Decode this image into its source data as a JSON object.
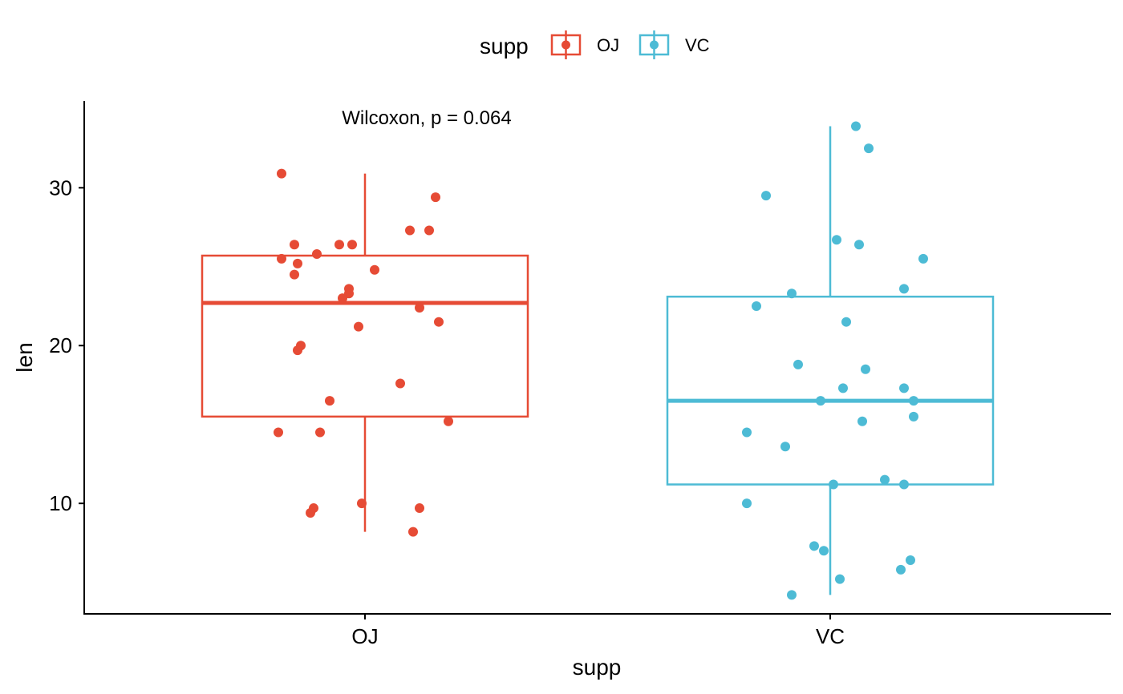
{
  "chart_data": {
    "type": "boxplot",
    "xlabel": "supp",
    "ylabel": "len",
    "categories": [
      "OJ",
      "VC"
    ],
    "ylim": [
      3,
      35.5
    ],
    "yticks": [
      10,
      20,
      30
    ],
    "grid": false,
    "legend": {
      "title": "supp",
      "placement": "top",
      "entries": [
        "OJ",
        "VC"
      ]
    },
    "annotation": "Wilcoxon, p = 0.064",
    "series": [
      {
        "name": "OJ",
        "color": "#E64B35",
        "box": {
          "min": 8.2,
          "q1": 15.5,
          "median": 22.7,
          "q3": 25.7,
          "max": 30.9
        },
        "points": [
          {
            "x": -0.26,
            "y": 30.9
          },
          {
            "x": 0.22,
            "y": 29.4
          },
          {
            "x": 0.14,
            "y": 27.3
          },
          {
            "x": 0.2,
            "y": 27.3
          },
          {
            "x": -0.22,
            "y": 26.4
          },
          {
            "x": -0.08,
            "y": 26.4
          },
          {
            "x": -0.04,
            "y": 26.4
          },
          {
            "x": -0.15,
            "y": 25.8
          },
          {
            "x": -0.26,
            "y": 25.5
          },
          {
            "x": -0.21,
            "y": 25.2
          },
          {
            "x": 0.03,
            "y": 24.8
          },
          {
            "x": -0.22,
            "y": 24.5
          },
          {
            "x": -0.05,
            "y": 23.6
          },
          {
            "x": -0.05,
            "y": 23.3
          },
          {
            "x": -0.07,
            "y": 23.0
          },
          {
            "x": 0.17,
            "y": 22.4
          },
          {
            "x": 0.23,
            "y": 21.5
          },
          {
            "x": -0.02,
            "y": 21.2
          },
          {
            "x": -0.2,
            "y": 20.0
          },
          {
            "x": -0.21,
            "y": 19.7
          },
          {
            "x": 0.11,
            "y": 17.6
          },
          {
            "x": -0.11,
            "y": 16.5
          },
          {
            "x": 0.26,
            "y": 15.2
          },
          {
            "x": -0.27,
            "y": 14.5
          },
          {
            "x": -0.14,
            "y": 14.5
          },
          {
            "x": -0.01,
            "y": 10.0
          },
          {
            "x": -0.16,
            "y": 9.7
          },
          {
            "x": 0.17,
            "y": 9.7
          },
          {
            "x": -0.17,
            "y": 9.4
          },
          {
            "x": 0.15,
            "y": 8.2
          }
        ]
      },
      {
        "name": "VC",
        "color": "#4DBBD5",
        "box": {
          "min": 4.2,
          "q1": 11.2,
          "median": 16.5,
          "q3": 23.1,
          "max": 33.9
        },
        "points": [
          {
            "x": 0.08,
            "y": 33.9
          },
          {
            "x": 0.12,
            "y": 32.5
          },
          {
            "x": -0.2,
            "y": 29.5
          },
          {
            "x": 0.02,
            "y": 26.7
          },
          {
            "x": 0.09,
            "y": 26.4
          },
          {
            "x": 0.29,
            "y": 25.5
          },
          {
            "x": -0.12,
            "y": 23.3
          },
          {
            "x": 0.23,
            "y": 23.6
          },
          {
            "x": -0.23,
            "y": 22.5
          },
          {
            "x": 0.05,
            "y": 21.5
          },
          {
            "x": -0.1,
            "y": 18.8
          },
          {
            "x": 0.11,
            "y": 18.5
          },
          {
            "x": 0.04,
            "y": 17.3
          },
          {
            "x": 0.23,
            "y": 17.3
          },
          {
            "x": -0.03,
            "y": 16.5
          },
          {
            "x": 0.26,
            "y": 16.5
          },
          {
            "x": 0.1,
            "y": 15.2
          },
          {
            "x": 0.26,
            "y": 15.5
          },
          {
            "x": -0.26,
            "y": 14.5
          },
          {
            "x": -0.14,
            "y": 13.6
          },
          {
            "x": 0.17,
            "y": 11.5
          },
          {
            "x": 0.01,
            "y": 11.2
          },
          {
            "x": 0.23,
            "y": 11.2
          },
          {
            "x": -0.26,
            "y": 10.0
          },
          {
            "x": -0.05,
            "y": 7.3
          },
          {
            "x": -0.02,
            "y": 7.0
          },
          {
            "x": 0.25,
            "y": 6.4
          },
          {
            "x": 0.22,
            "y": 5.8
          },
          {
            "x": 0.03,
            "y": 5.2
          },
          {
            "x": -0.12,
            "y": 4.2
          }
        ]
      }
    ]
  }
}
